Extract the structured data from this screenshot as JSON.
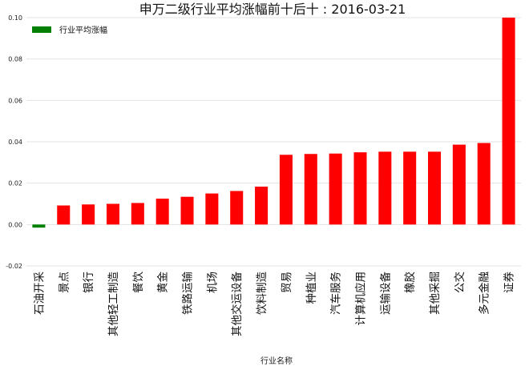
{
  "chart_data": {
    "type": "bar",
    "title": "申万二级行业平均涨幅前十后十 : 2016-03-21",
    "xlabel": "行业名称",
    "ylabel": "",
    "ylim": [
      -0.02,
      0.1
    ],
    "yticks": [
      "-0.02",
      "0.00",
      "0.02",
      "0.04",
      "0.06",
      "0.08",
      "0.10"
    ],
    "grid": true,
    "legend": {
      "placement": "top-left",
      "entries": [
        "行业平均涨幅"
      ]
    },
    "colors": {
      "positive": "#ff0000",
      "negative": "#008000"
    },
    "categories": [
      "石油开采",
      "景点",
      "银行",
      "其他轻工制造",
      "餐饮",
      "黄金",
      "铁路运输",
      "机场",
      "其他交运设备",
      "饮料制造",
      "贸易",
      "种植业",
      "汽车服务",
      "计算机应用",
      "运输设备",
      "橡胶",
      "其他采掘",
      "公交",
      "多元金融",
      "证券"
    ],
    "series": [
      {
        "name": "行业平均涨幅",
        "values": [
          -0.0015,
          0.0092,
          0.0097,
          0.01,
          0.0104,
          0.0125,
          0.0134,
          0.015,
          0.0162,
          0.0183,
          0.0337,
          0.0341,
          0.0343,
          0.0349,
          0.0352,
          0.0352,
          0.0352,
          0.0386,
          0.0394,
          0.1
        ]
      }
    ]
  }
}
